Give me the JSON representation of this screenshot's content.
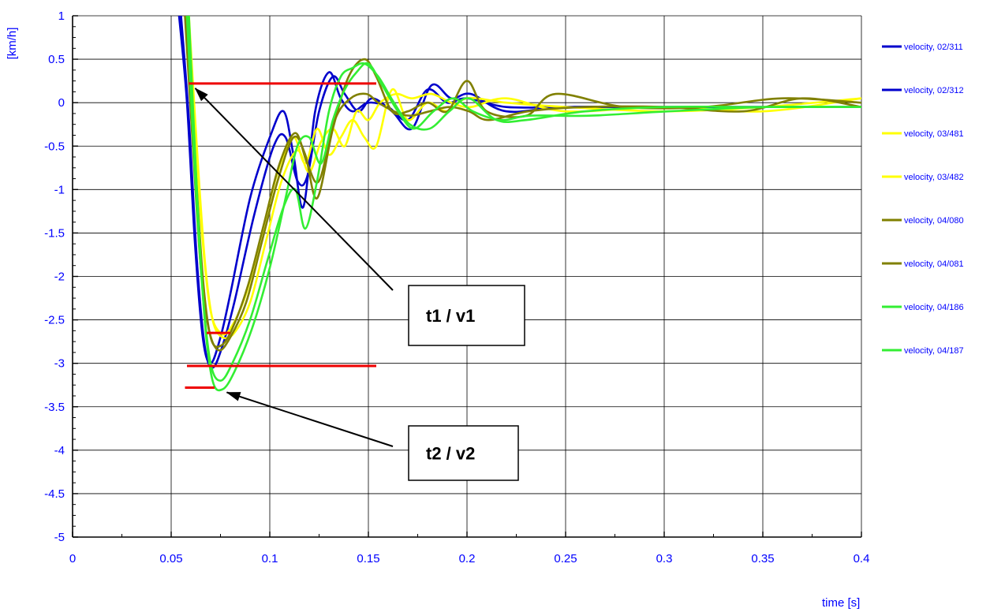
{
  "chart_data": {
    "type": "line",
    "xlabel": "time [s]",
    "ylabel": "[km/h]",
    "xlim": [
      0,
      0.4
    ],
    "ylim": [
      -5,
      1
    ],
    "x_ticks": [
      0,
      0.05,
      0.1,
      0.15,
      0.2,
      0.25,
      0.3,
      0.35,
      0.4
    ],
    "x_tick_labels": [
      "0",
      "0.05",
      "0.1",
      "0.15",
      "0.2",
      "0.25",
      "0.3",
      "0.35",
      "0.4"
    ],
    "y_ticks": [
      1,
      0.5,
      0,
      -0.5,
      -1,
      -1.5,
      -2,
      -2.5,
      -3,
      -3.5,
      -4,
      -4.5,
      -5
    ],
    "y_tick_labels": [
      "1",
      "0.5",
      "0",
      "-0.5",
      "-1",
      "-1.5",
      "-2",
      "-2.5",
      "-3",
      "-3.5",
      "-4",
      "-4.5",
      "-5"
    ],
    "grid": true,
    "legend_position": "right",
    "series": [
      {
        "name": "velocity, 02/311",
        "color": "#0000cc",
        "x": [
          0.054,
          0.058,
          0.062,
          0.066,
          0.07,
          0.075,
          0.08,
          0.09,
          0.1,
          0.107,
          0.112,
          0.117,
          0.123,
          0.13,
          0.136,
          0.142,
          0.15,
          0.16,
          0.17,
          0.18,
          0.19,
          0.2,
          0.22,
          0.25,
          0.3,
          0.35,
          0.4
        ],
        "y": [
          1.0,
          0.0,
          -1.6,
          -2.7,
          -3.0,
          -2.7,
          -2.2,
          -1.1,
          -0.4,
          -0.1,
          -0.6,
          -1.2,
          -0.1,
          0.35,
          0.05,
          -0.1,
          0.0,
          -0.05,
          -0.2,
          0.15,
          0.0,
          0.05,
          -0.05,
          -0.05,
          -0.05,
          -0.05,
          -0.05
        ]
      },
      {
        "name": "velocity, 02/312",
        "color": "#0000cc",
        "x": [
          0.055,
          0.059,
          0.063,
          0.067,
          0.071,
          0.076,
          0.082,
          0.092,
          0.102,
          0.108,
          0.114,
          0.119,
          0.125,
          0.132,
          0.138,
          0.145,
          0.152,
          0.162,
          0.172,
          0.182,
          0.192,
          0.202,
          0.22,
          0.25,
          0.3,
          0.35,
          0.4
        ],
        "y": [
          1.0,
          -0.2,
          -1.8,
          -2.8,
          -3.05,
          -2.8,
          -2.3,
          -1.3,
          -0.5,
          -0.4,
          -0.9,
          -0.85,
          -0.1,
          0.3,
          0.1,
          -0.1,
          0.05,
          -0.1,
          -0.3,
          0.2,
          0.05,
          0.1,
          -0.1,
          -0.05,
          -0.05,
          -0.05,
          -0.05
        ]
      },
      {
        "name": "velocity, 03/481",
        "color": "#ffff00",
        "x": [
          0.058,
          0.062,
          0.066,
          0.07,
          0.075,
          0.08,
          0.088,
          0.096,
          0.104,
          0.112,
          0.118,
          0.124,
          0.13,
          0.136,
          0.142,
          0.148,
          0.154,
          0.162,
          0.17,
          0.18,
          0.19,
          0.2,
          0.22,
          0.25,
          0.3,
          0.35,
          0.4
        ],
        "y": [
          1.0,
          -0.3,
          -1.6,
          -2.4,
          -2.65,
          -2.6,
          -2.2,
          -1.5,
          -0.8,
          -0.4,
          -0.7,
          -0.3,
          -0.6,
          -0.4,
          -0.2,
          -0.4,
          -0.5,
          0.15,
          -0.2,
          0.0,
          -0.1,
          0.05,
          0.0,
          -0.05,
          -0.1,
          -0.05,
          0.05
        ]
      },
      {
        "name": "velocity, 03/482",
        "color": "#ffff00",
        "x": [
          0.059,
          0.063,
          0.067,
          0.071,
          0.076,
          0.082,
          0.09,
          0.098,
          0.106,
          0.114,
          0.12,
          0.126,
          0.132,
          0.138,
          0.144,
          0.15,
          0.156,
          0.164,
          0.172,
          0.182,
          0.192,
          0.202,
          0.22,
          0.25,
          0.3,
          0.35,
          0.4
        ],
        "y": [
          1.0,
          -0.5,
          -1.8,
          -2.5,
          -2.7,
          -2.65,
          -2.3,
          -1.6,
          -0.9,
          -0.55,
          -0.8,
          -0.45,
          -0.3,
          -0.5,
          -0.1,
          -0.2,
          0.0,
          0.1,
          0.05,
          0.1,
          0.0,
          -0.05,
          0.05,
          -0.1,
          -0.05,
          -0.1,
          0.05
        ]
      },
      {
        "name": "velocity, 04/080",
        "color": "#808000",
        "x": [
          0.057,
          0.061,
          0.065,
          0.069,
          0.074,
          0.08,
          0.088,
          0.096,
          0.104,
          0.112,
          0.118,
          0.124,
          0.132,
          0.14,
          0.148,
          0.154,
          0.162,
          0.17,
          0.18,
          0.19,
          0.2,
          0.21,
          0.23,
          0.245,
          0.28,
          0.32,
          0.36,
          0.4
        ],
        "y": [
          1.0,
          -0.5,
          -1.9,
          -2.6,
          -2.85,
          -2.7,
          -2.3,
          -1.6,
          -0.9,
          -0.4,
          -0.6,
          -1.1,
          -0.3,
          0.3,
          0.5,
          0.3,
          -0.1,
          -0.1,
          0.0,
          -0.1,
          0.25,
          -0.1,
          -0.15,
          0.1,
          -0.05,
          -0.05,
          0.05,
          0.0
        ]
      },
      {
        "name": "velocity, 04/081",
        "color": "#808000",
        "x": [
          0.058,
          0.062,
          0.066,
          0.07,
          0.075,
          0.081,
          0.089,
          0.097,
          0.105,
          0.113,
          0.119,
          0.125,
          0.133,
          0.141,
          0.149,
          0.155,
          0.163,
          0.171,
          0.181,
          0.191,
          0.201,
          0.211,
          0.231,
          0.26,
          0.3,
          0.34,
          0.37,
          0.4
        ],
        "y": [
          1.0,
          -0.6,
          -2.0,
          -2.7,
          -2.8,
          -2.6,
          -2.1,
          -1.4,
          -0.7,
          -0.35,
          -0.7,
          -0.9,
          -0.2,
          0.05,
          0.1,
          0.0,
          -0.1,
          -0.15,
          -0.1,
          -0.05,
          -0.1,
          -0.2,
          -0.1,
          -0.05,
          -0.05,
          -0.1,
          0.05,
          -0.05
        ]
      },
      {
        "name": "velocity, 04/186",
        "color": "#33ee33",
        "x": [
          0.058,
          0.062,
          0.066,
          0.07,
          0.075,
          0.081,
          0.09,
          0.099,
          0.107,
          0.113,
          0.118,
          0.124,
          0.13,
          0.136,
          0.142,
          0.148,
          0.155,
          0.163,
          0.171,
          0.181,
          0.191,
          0.201,
          0.215,
          0.23,
          0.26,
          0.3,
          0.35,
          0.4
        ],
        "y": [
          1.0,
          -0.8,
          -2.2,
          -3.0,
          -3.2,
          -3.0,
          -2.5,
          -1.8,
          -1.2,
          -1.0,
          -1.45,
          -0.9,
          -0.1,
          0.3,
          0.4,
          0.45,
          0.3,
          0.0,
          -0.25,
          -0.3,
          -0.1,
          0.05,
          -0.2,
          -0.2,
          -0.1,
          -0.05,
          -0.05,
          -0.05
        ]
      },
      {
        "name": "velocity, 04/187",
        "color": "#33ee33",
        "x": [
          0.059,
          0.063,
          0.067,
          0.071,
          0.076,
          0.082,
          0.091,
          0.1,
          0.108,
          0.114,
          0.12,
          0.126,
          0.132,
          0.138,
          0.144,
          0.15,
          0.157,
          0.165,
          0.173,
          0.183,
          0.193,
          0.203,
          0.217,
          0.232,
          0.262,
          0.302,
          0.352,
          0.4
        ],
        "y": [
          1.0,
          -1.0,
          -2.5,
          -3.2,
          -3.3,
          -3.1,
          -2.6,
          -1.9,
          -1.1,
          -0.5,
          -0.4,
          -0.7,
          -0.2,
          0.15,
          0.35,
          0.45,
          0.2,
          -0.1,
          -0.3,
          -0.1,
          0.05,
          -0.1,
          -0.2,
          -0.15,
          -0.15,
          -0.1,
          -0.05,
          -0.05
        ]
      }
    ],
    "reference_lines": [
      {
        "color": "#ee0000",
        "x": [
          0.059,
          0.154
        ],
        "y": 0.22
      },
      {
        "color": "#ee0000",
        "x": [
          0.068,
          0.08
        ],
        "y": -2.65
      },
      {
        "color": "#ee0000",
        "x": [
          0.058,
          0.154
        ],
        "y": -3.03
      },
      {
        "color": "#ee0000",
        "x": [
          0.057,
          0.072
        ],
        "y": -3.28
      }
    ],
    "annotations": [
      {
        "text": "t1 / v1",
        "target": [
          0.059,
          0.22
        ]
      },
      {
        "text": "t2 / v2",
        "target": [
          0.075,
          -3.28
        ]
      }
    ]
  }
}
